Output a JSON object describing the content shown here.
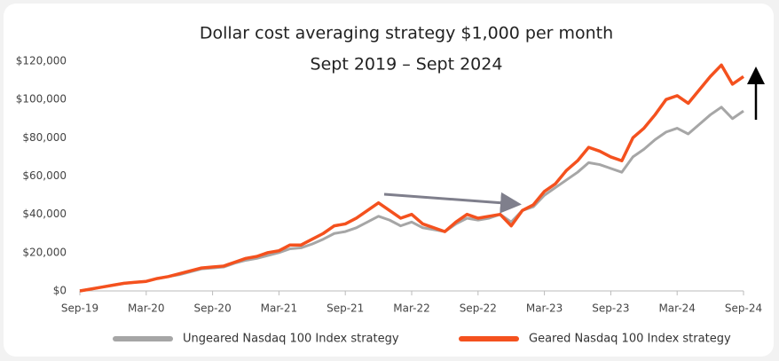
{
  "chart_data": {
    "type": "line",
    "title": "Dollar cost averaging strategy $1,000 per month",
    "subtitle": "Sept 2019 – Sept 2024",
    "categories": [
      "Sep-19",
      null,
      null,
      null,
      null,
      null,
      "Mar-20",
      null,
      null,
      null,
      null,
      null,
      "Sep-20",
      null,
      null,
      null,
      null,
      null,
      "Mar-21",
      null,
      null,
      null,
      null,
      null,
      "Sep-21",
      null,
      null,
      null,
      null,
      null,
      "Mar-22",
      null,
      null,
      null,
      null,
      null,
      "Sep-22",
      null,
      null,
      null,
      null,
      null,
      "Mar-23",
      null,
      null,
      null,
      null,
      null,
      "Sep-23",
      null,
      null,
      null,
      null,
      null,
      "Mar-24",
      null,
      null,
      null,
      null,
      null,
      "Sep-24"
    ],
    "series": [
      {
        "name": "Ungeared Nasdaq 100 Index strategy",
        "color": "#a6a6a6",
        "values": [
          0,
          1000,
          2000,
          3000,
          4000,
          4500,
          5000,
          6500,
          7500,
          8500,
          10000,
          11500,
          12000,
          12500,
          14500,
          16000,
          17000,
          18500,
          20000,
          22000,
          22500,
          24500,
          27000,
          30000,
          31000,
          33000,
          36000,
          39000,
          37000,
          34000,
          36000,
          33000,
          32000,
          31000,
          35000,
          38000,
          37000,
          38000,
          40000,
          36000,
          42000,
          44000,
          50000,
          54000,
          58000,
          62000,
          67000,
          66000,
          64000,
          62000,
          70000,
          74000,
          79000,
          83000,
          85000,
          82000,
          87000,
          92000,
          96000,
          90000,
          94000
        ]
      },
      {
        "name": "Geared Nasdaq 100 Index strategy",
        "color": "#f4511e",
        "values": [
          0,
          1000,
          2000,
          3000,
          4000,
          4500,
          5000,
          6500,
          7500,
          9000,
          10500,
          12000,
          12500,
          13000,
          15000,
          17000,
          18000,
          20000,
          21000,
          24000,
          24000,
          27000,
          30000,
          34000,
          35000,
          38000,
          42000,
          46000,
          42000,
          38000,
          40000,
          35000,
          33000,
          31000,
          36000,
          40000,
          38000,
          39000,
          40000,
          34000,
          42000,
          45000,
          52000,
          56000,
          63000,
          68000,
          75000,
          73000,
          70000,
          68000,
          80000,
          85000,
          92000,
          100000,
          102000,
          98000,
          105000,
          112000,
          118000,
          108000,
          112000
        ]
      }
    ],
    "ylim": [
      0,
      120000
    ],
    "yticks": [
      {
        "value": 0,
        "label": "$0"
      },
      {
        "value": 20000,
        "label": "$20,000"
      },
      {
        "value": 40000,
        "label": "$40,000"
      },
      {
        "value": 60000,
        "label": "$60,000"
      },
      {
        "value": 80000,
        "label": "$80,000"
      },
      {
        "value": 100000,
        "label": "$100,000"
      },
      {
        "value": 120000,
        "label": "$120,000"
      }
    ]
  }
}
